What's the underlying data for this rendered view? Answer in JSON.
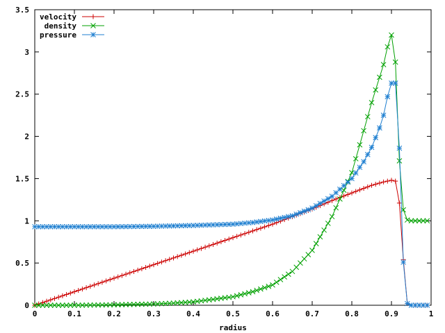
{
  "chart_data": {
    "type": "line",
    "title": "",
    "xlabel": "radius",
    "ylabel": "",
    "xlim": [
      0,
      1
    ],
    "ylim": [
      0,
      3.5
    ],
    "xticks": [
      "0",
      "0.1",
      "0.2",
      "0.3",
      "0.4",
      "0.5",
      "0.6",
      "0.7",
      "0.8",
      "0.9",
      "1"
    ],
    "yticks": [
      "0",
      "0.5",
      "1",
      "1.5",
      "2",
      "2.5",
      "3",
      "3.5"
    ],
    "grid": false,
    "legend_position": "top-left",
    "series": [
      {
        "name": "velocity",
        "color": "#cc0000",
        "marker": "plus",
        "x": [
          0,
          0.05,
          0.1,
          0.15,
          0.2,
          0.25,
          0.3,
          0.35,
          0.4,
          0.45,
          0.5,
          0.55,
          0.6,
          0.65,
          0.7,
          0.75,
          0.8,
          0.85,
          0.88,
          0.9,
          0.91,
          0.92,
          0.93,
          0.94,
          0.95,
          0.97,
          0.99
        ],
        "y": [
          0,
          0.08,
          0.16,
          0.24,
          0.32,
          0.4,
          0.48,
          0.56,
          0.64,
          0.72,
          0.8,
          0.88,
          0.96,
          1.05,
          1.14,
          1.24,
          1.33,
          1.42,
          1.46,
          1.48,
          1.47,
          1.21,
          0.54,
          0.02,
          0,
          0,
          0
        ]
      },
      {
        "name": "density",
        "color": "#00a000",
        "marker": "cross",
        "x": [
          0,
          0.1,
          0.2,
          0.3,
          0.35,
          0.4,
          0.45,
          0.5,
          0.55,
          0.6,
          0.65,
          0.7,
          0.75,
          0.8,
          0.82,
          0.85,
          0.87,
          0.88,
          0.89,
          0.9,
          0.91,
          0.92,
          0.93,
          0.94,
          0.95,
          0.97,
          0.99
        ],
        "y": [
          0,
          0.0,
          0.005,
          0.015,
          0.025,
          0.04,
          0.07,
          0.1,
          0.16,
          0.24,
          0.4,
          0.65,
          1.05,
          1.57,
          1.9,
          2.4,
          2.7,
          2.85,
          3.06,
          3.2,
          2.88,
          1.71,
          1.13,
          1.01,
          1.0,
          1.0,
          1.0
        ]
      },
      {
        "name": "pressure",
        "color": "#1e7fd0",
        "marker": "star",
        "x": [
          0,
          0.1,
          0.2,
          0.3,
          0.4,
          0.5,
          0.55,
          0.6,
          0.65,
          0.7,
          0.75,
          0.8,
          0.83,
          0.85,
          0.87,
          0.88,
          0.89,
          0.9,
          0.91,
          0.92,
          0.93,
          0.94,
          0.95,
          0.97,
          0.99
        ],
        "y": [
          0.93,
          0.93,
          0.93,
          0.935,
          0.945,
          0.96,
          0.98,
          1.01,
          1.06,
          1.15,
          1.29,
          1.5,
          1.7,
          1.87,
          2.1,
          2.25,
          2.47,
          2.63,
          2.63,
          1.86,
          0.51,
          0.02,
          0,
          0,
          0
        ]
      }
    ]
  }
}
